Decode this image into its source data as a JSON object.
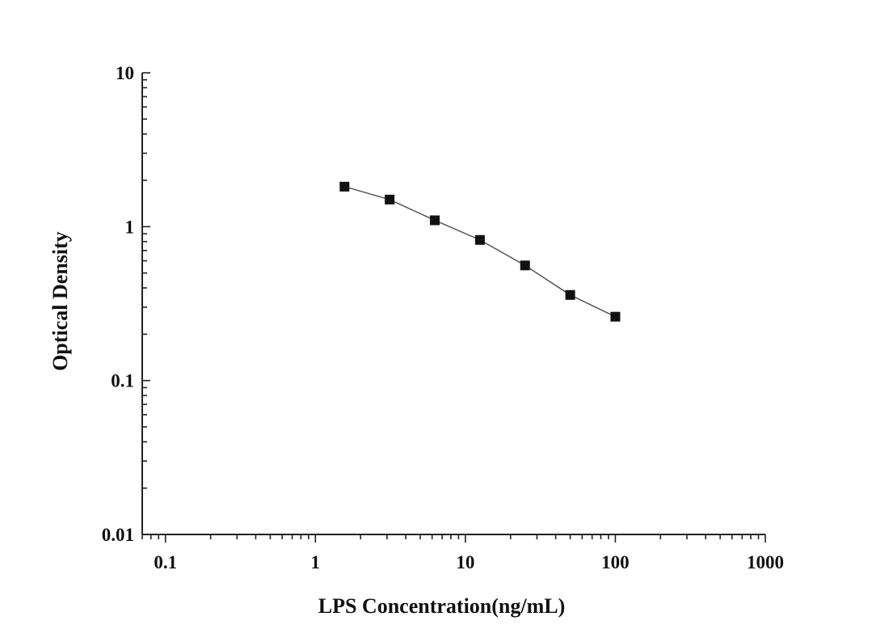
{
  "chart_data": {
    "type": "scatter",
    "title": "",
    "xlabel": "LPS Concentration(ng/mL)",
    "ylabel": "Optical Density",
    "xscale": "log",
    "yscale": "log",
    "xlim": [
      0.07,
      1000
    ],
    "ylim": [
      0.01,
      10
    ],
    "xticks": [
      {
        "value": 0.1,
        "label": "0.1"
      },
      {
        "value": 1,
        "label": "1"
      },
      {
        "value": 10,
        "label": "10"
      },
      {
        "value": 100,
        "label": "100"
      },
      {
        "value": 1000,
        "label": "1000"
      }
    ],
    "yticks": [
      {
        "value": 0.01,
        "label": "0.01"
      },
      {
        "value": 0.1,
        "label": "0.1"
      },
      {
        "value": 1,
        "label": "1"
      },
      {
        "value": 10,
        "label": "10"
      }
    ],
    "grid": false,
    "legend": "none",
    "marker": "square",
    "marker_color": "#111111",
    "line_color": "#555555",
    "series": [
      {
        "x": [
          1.5625,
          3.125,
          6.25,
          12.5,
          25,
          50,
          100
        ],
        "y": [
          1.82,
          1.5,
          1.1,
          0.82,
          0.56,
          0.36,
          0.26
        ]
      }
    ]
  }
}
